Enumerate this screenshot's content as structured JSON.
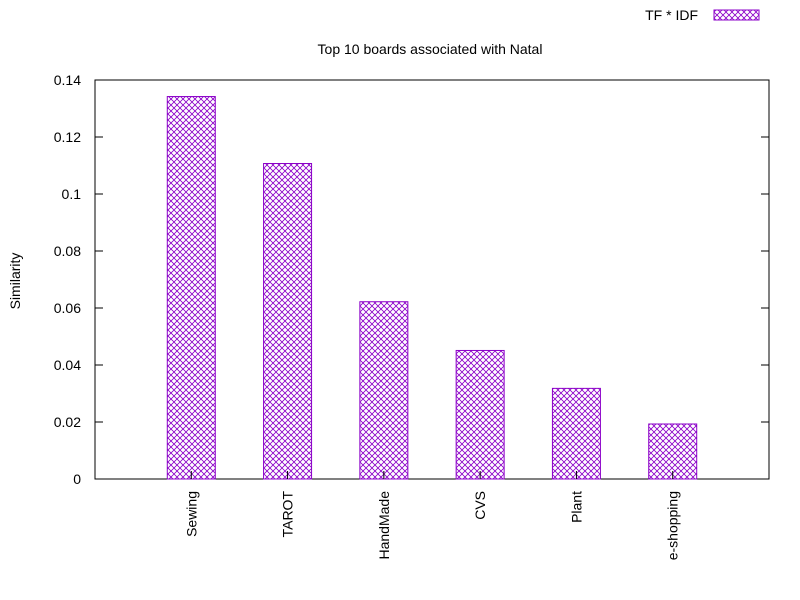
{
  "chart_data": {
    "type": "bar",
    "title": "Top 10 boards associated with Natal",
    "xlabel": "",
    "ylabel": "Similarity",
    "categories": [
      "Sewing",
      "TAROT",
      "HandMade",
      "CVS",
      "Plant",
      "e-shopping"
    ],
    "series": [
      {
        "name": "TF * IDF",
        "values": [
          0.1342,
          0.1107,
          0.0622,
          0.0451,
          0.0318,
          0.0193
        ]
      }
    ],
    "ylim": [
      0,
      0.14
    ],
    "yticks": [
      "0",
      "0.02",
      "0.04",
      "0.06",
      "0.08",
      "0.1",
      "0.12",
      "0.14"
    ],
    "grid": false,
    "legend_position": "top-right",
    "colors": {
      "bar_stroke": "#8b00c8",
      "axis": "#000000"
    }
  }
}
